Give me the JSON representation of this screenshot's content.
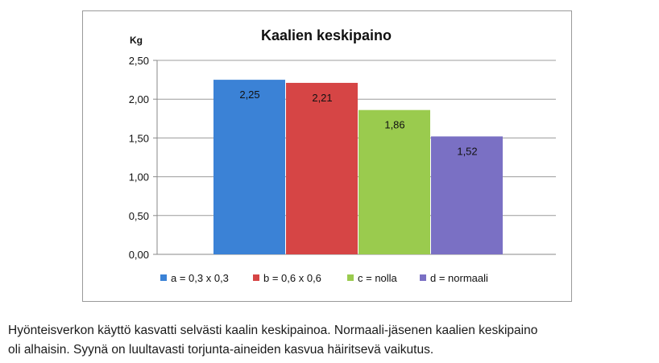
{
  "chart_data": {
    "type": "bar",
    "title": "Kaalien keskipaino",
    "ylabel": "Kg",
    "xlabel": "",
    "ylim": [
      0,
      2.5
    ],
    "yticks": [
      "0,00",
      "0,50",
      "1,00",
      "1,50",
      "2,00",
      "2,50"
    ],
    "grid": true,
    "legend_position": "bottom",
    "series": [
      {
        "name": "a = 0,3 x 0,3",
        "values": [
          2.25
        ],
        "label": "2,25",
        "color": "#3b82d6"
      },
      {
        "name": "b = 0,6 x 0,6",
        "values": [
          2.21
        ],
        "label": "2,21",
        "color": "#d64545"
      },
      {
        "name": "c = nolla",
        "values": [
          1.86
        ],
        "label": "1,86",
        "color": "#9acb4e"
      },
      {
        "name": "d = normaali",
        "values": [
          1.52
        ],
        "label": "1,52",
        "color": "#7a70c4"
      }
    ]
  },
  "caption": {
    "line1": "Hyönteisverkon käyttö kasvatti selvästi kaalin keskipainoa. Normaali-jäsenen kaalien keskipaino",
    "line2": "oli alhaisin. Syynä on luultavasti torjunta-aineiden kasvua häiritsevä vaikutus."
  }
}
